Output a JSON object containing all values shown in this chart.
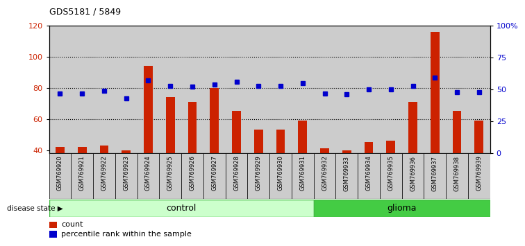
{
  "title": "GDS5181 / 5849",
  "samples": [
    "GSM769920",
    "GSM769921",
    "GSM769922",
    "GSM769923",
    "GSM769924",
    "GSM769925",
    "GSM769926",
    "GSM769927",
    "GSM769928",
    "GSM769929",
    "GSM769930",
    "GSM769931",
    "GSM769932",
    "GSM769933",
    "GSM769934",
    "GSM769935",
    "GSM769936",
    "GSM769937",
    "GSM769938",
    "GSM769939"
  ],
  "counts": [
    42,
    42,
    43,
    40,
    94,
    74,
    71,
    80,
    65,
    53,
    53,
    59,
    41,
    40,
    45,
    46,
    71,
    116,
    65,
    59
  ],
  "percentiles": [
    47,
    47,
    49,
    43,
    57,
    53,
    52,
    54,
    56,
    53,
    53,
    55,
    47,
    46,
    50,
    50,
    53,
    59,
    48,
    48
  ],
  "control_count": 12,
  "glioma_count": 8,
  "ylim_left": [
    38,
    120
  ],
  "ylim_right": [
    0,
    100
  ],
  "yticks_left": [
    40,
    60,
    80,
    100,
    120
  ],
  "yticks_right": [
    0,
    25,
    50,
    75,
    100
  ],
  "ytick_labels_right": [
    "0",
    "25",
    "50",
    "75",
    "100%"
  ],
  "bar_color": "#cc2200",
  "dot_color": "#0000cc",
  "control_color": "#ccffcc",
  "glioma_color": "#44cc44",
  "grid_color": "#000000",
  "cell_bg_color": "#cccccc",
  "plot_bg_color": "#ffffff",
  "legend_count_label": "count",
  "legend_pct_label": "percentile rank within the sample",
  "disease_state_label": "disease state",
  "control_label": "control",
  "glioma_label": "glioma"
}
